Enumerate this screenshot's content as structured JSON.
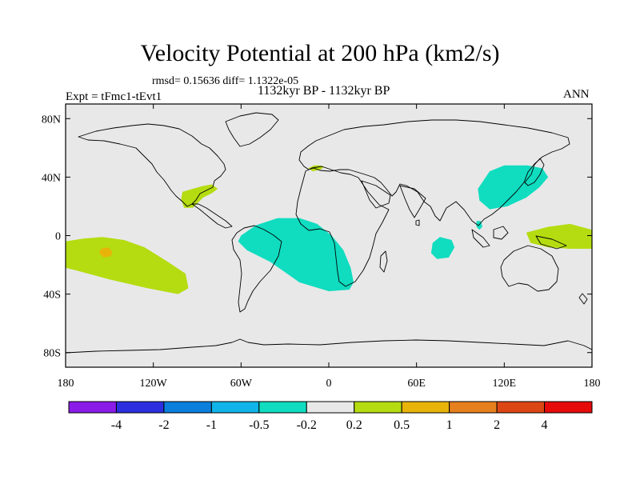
{
  "chart_data": {
    "type": "heatmap",
    "title": "Velocity Potential at 200 hPa (km2/s)",
    "stats_text": "rmsd= 0.15636 diff= 1.1322e-05",
    "left_subtitle": "Expt = tFmc1-tEvt1",
    "center_subtitle": "1132kyr BP - 1132kyr BP",
    "right_subtitle": "ANN",
    "projection": "cylindrical equidistant",
    "xlim": [
      -180,
      180
    ],
    "ylim": [
      -90,
      90
    ],
    "x_ticks": [
      {
        "value": -180,
        "label": "180"
      },
      {
        "value": -120,
        "label": "120W"
      },
      {
        "value": -60,
        "label": "60W"
      },
      {
        "value": 0,
        "label": "0"
      },
      {
        "value": 60,
        "label": "60E"
      },
      {
        "value": 120,
        "label": "120E"
      },
      {
        "value": 180,
        "label": "180"
      }
    ],
    "y_ticks": [
      {
        "value": 80,
        "label": "80N"
      },
      {
        "value": 40,
        "label": "40N"
      },
      {
        "value": 0,
        "label": "0"
      },
      {
        "value": -40,
        "label": "40S"
      },
      {
        "value": -80,
        "label": "80S"
      }
    ],
    "colorbar": {
      "levels": [
        "-4",
        "-2",
        "-1",
        "-0.5",
        "-0.2",
        "0.2",
        "0.5",
        "1",
        "2",
        "4"
      ],
      "colors": [
        "#8a1be8",
        "#2b2fe0",
        "#0a7fdc",
        "#10b4e8",
        "#10dcc0",
        "#e8e8e8",
        "#b4dc10",
        "#e8b40a",
        "#e6801e",
        "#dc4614",
        "#e60a0a"
      ]
    },
    "background_color": "#e8e8e8",
    "regions": [
      {
        "name": "central-south-pacific",
        "category": "0.2 to 0.5",
        "color": "#b4dc10",
        "polygon": [
          [
            -180,
            -4
          ],
          [
            -168,
            -2
          ],
          [
            -155,
            -1
          ],
          [
            -140,
            -3
          ],
          [
            -126,
            -8
          ],
          [
            -110,
            -18
          ],
          [
            -98,
            -26
          ],
          [
            -96,
            -36
          ],
          [
            -103,
            -40
          ],
          [
            -124,
            -36
          ],
          [
            -150,
            -30
          ],
          [
            -172,
            -24
          ],
          [
            -180,
            -22
          ]
        ]
      },
      {
        "name": "south-pacific-core",
        "category": "0.5 to 1",
        "color": "#e8b40a",
        "polygon": [
          [
            -156,
            -9
          ],
          [
            -151,
            -8
          ],
          [
            -148,
            -11
          ],
          [
            -149,
            -14
          ],
          [
            -154,
            -15
          ],
          [
            -157,
            -12
          ]
        ]
      },
      {
        "name": "gulf-of-mexico",
        "category": "0.2 to 0.5",
        "color": "#b4dc10",
        "polygon": [
          [
            -100,
            30
          ],
          [
            -93,
            32
          ],
          [
            -86,
            34
          ],
          [
            -80,
            35
          ],
          [
            -76,
            32
          ],
          [
            -80,
            29
          ],
          [
            -86,
            26
          ],
          [
            -93,
            19
          ],
          [
            -99,
            19
          ],
          [
            -101,
            25
          ]
        ]
      },
      {
        "name": "iberia",
        "category": "0.2 to 0.5",
        "color": "#b4dc10",
        "polygon": [
          [
            -14,
            46
          ],
          [
            -10,
            48
          ],
          [
            -6,
            48
          ],
          [
            -3,
            47
          ],
          [
            -6,
            45
          ],
          [
            -11,
            44
          ]
        ]
      },
      {
        "name": "west-pacific",
        "category": "0.2 to 0.5",
        "color": "#b4dc10",
        "polygon": [
          [
            135,
            2
          ],
          [
            150,
            6
          ],
          [
            165,
            8
          ],
          [
            180,
            4
          ],
          [
            180,
            -9
          ],
          [
            165,
            -9
          ],
          [
            150,
            -8
          ],
          [
            138,
            -5
          ]
        ]
      },
      {
        "name": "south-atlantic",
        "category": "-0.5 to -0.2",
        "color": "#10dcc0",
        "polygon": [
          [
            -60,
            0
          ],
          [
            -50,
            7
          ],
          [
            -35,
            12
          ],
          [
            -20,
            12
          ],
          [
            -8,
            8
          ],
          [
            2,
            0
          ],
          [
            10,
            -10
          ],
          [
            15,
            -22
          ],
          [
            17,
            -32
          ],
          [
            14,
            -37
          ],
          [
            0,
            -38
          ],
          [
            -20,
            -32
          ],
          [
            -40,
            -18
          ],
          [
            -56,
            -10
          ],
          [
            -62,
            -4
          ]
        ]
      },
      {
        "name": "east-asia",
        "category": "-0.5 to -0.2",
        "color": "#10dcc0",
        "polygon": [
          [
            102,
            32
          ],
          [
            110,
            44
          ],
          [
            120,
            48
          ],
          [
            136,
            48
          ],
          [
            146,
            46
          ],
          [
            150,
            40
          ],
          [
            144,
            33
          ],
          [
            135,
            26
          ],
          [
            122,
            20
          ],
          [
            110,
            18
          ],
          [
            103,
            24
          ]
        ]
      },
      {
        "name": "indochina",
        "category": "-0.5 to -0.2",
        "color": "#10dcc0",
        "polygon": [
          [
            101,
            10
          ],
          [
            104,
            10
          ],
          [
            105,
            6
          ],
          [
            103,
            4
          ],
          [
            101,
            6
          ]
        ]
      },
      {
        "name": "central-indian-ocean",
        "category": "-0.5 to -0.2",
        "color": "#10dcc0",
        "polygon": [
          [
            76,
            -1
          ],
          [
            84,
            -3
          ],
          [
            86,
            -8
          ],
          [
            82,
            -15
          ],
          [
            74,
            -16
          ],
          [
            70,
            -12
          ],
          [
            71,
            -5
          ]
        ]
      }
    ]
  }
}
